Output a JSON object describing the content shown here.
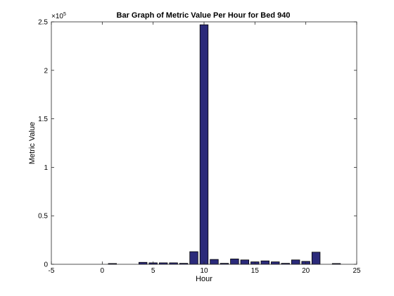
{
  "chart_data": {
    "type": "bar",
    "title": "Bar Graph of Metric Value Per Hour for Bed 940",
    "xlabel": "Hour",
    "ylabel": "Metric Value",
    "exponent_label": "×10",
    "exponent_power": "5",
    "xlim": [
      -5,
      25
    ],
    "ylim": [
      0,
      250000
    ],
    "x_ticks": [
      -5,
      0,
      5,
      10,
      15,
      20,
      25
    ],
    "x_tick_labels": [
      "-5",
      "0",
      "5",
      "10",
      "15",
      "20",
      "25"
    ],
    "y_ticks": [
      0,
      50000,
      100000,
      150000,
      200000,
      250000
    ],
    "y_tick_labels": [
      "0",
      "0.5",
      "1",
      "1.5",
      "2",
      "2.5"
    ],
    "bar_color": "#2b2a7a",
    "grid": false,
    "x": [
      0,
      1,
      2,
      3,
      4,
      5,
      6,
      7,
      8,
      9,
      10,
      11,
      12,
      13,
      14,
      15,
      16,
      17,
      18,
      19,
      20,
      21,
      22,
      23
    ],
    "values": [
      0,
      800,
      0,
      0,
      2000,
      1500,
      1500,
      1500,
      1000,
      13000,
      247000,
      5000,
      1000,
      5500,
      4500,
      2500,
      3500,
      2500,
      1000,
      4500,
      3000,
      12500,
      0,
      800
    ]
  }
}
